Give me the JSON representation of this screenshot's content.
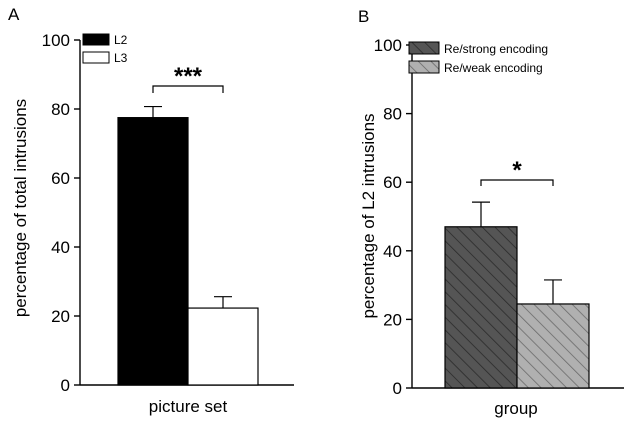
{
  "chart_data": [
    {
      "type": "bar",
      "panel_label": "A",
      "categories": [
        "picture set"
      ],
      "series": [
        {
          "name": "L2",
          "values": [
            77.5
          ],
          "error": [
            3.2
          ],
          "color": "#000000",
          "pattern": "solid"
        },
        {
          "name": "L3",
          "values": [
            22.3
          ],
          "error": [
            3.3
          ],
          "color": "#ffffff",
          "pattern": "solid"
        }
      ],
      "xlabel": "picture set",
      "ylabel": "percentage of total intrusions",
      "ylim": [
        0,
        100
      ],
      "yticks": [
        0,
        20,
        40,
        60,
        80,
        100
      ],
      "ytick_labels": [
        "0",
        "20",
        "40",
        "60",
        "80",
        "100"
      ],
      "grid": false,
      "legend_position": "top-left",
      "significance": "***"
    },
    {
      "type": "bar",
      "panel_label": "B",
      "categories": [
        "group"
      ],
      "series": [
        {
          "name": "Re/strong encoding",
          "values": [
            47
          ],
          "error": [
            7.2
          ],
          "color": "#555555",
          "pattern": "hatch"
        },
        {
          "name": "Re/weak encoding",
          "values": [
            24.5
          ],
          "error": [
            7
          ],
          "color": "#b0b0b0",
          "pattern": "hatch"
        }
      ],
      "xlabel": "group",
      "ylabel": "percentage of L2 intrusions",
      "ylim": [
        0,
        100
      ],
      "yticks": [
        0,
        20,
        40,
        60,
        80,
        100
      ],
      "ytick_labels": [
        "0",
        "20",
        "40",
        "60",
        "80",
        "100"
      ],
      "grid": false,
      "legend_position": "top-left",
      "significance": "*"
    }
  ]
}
